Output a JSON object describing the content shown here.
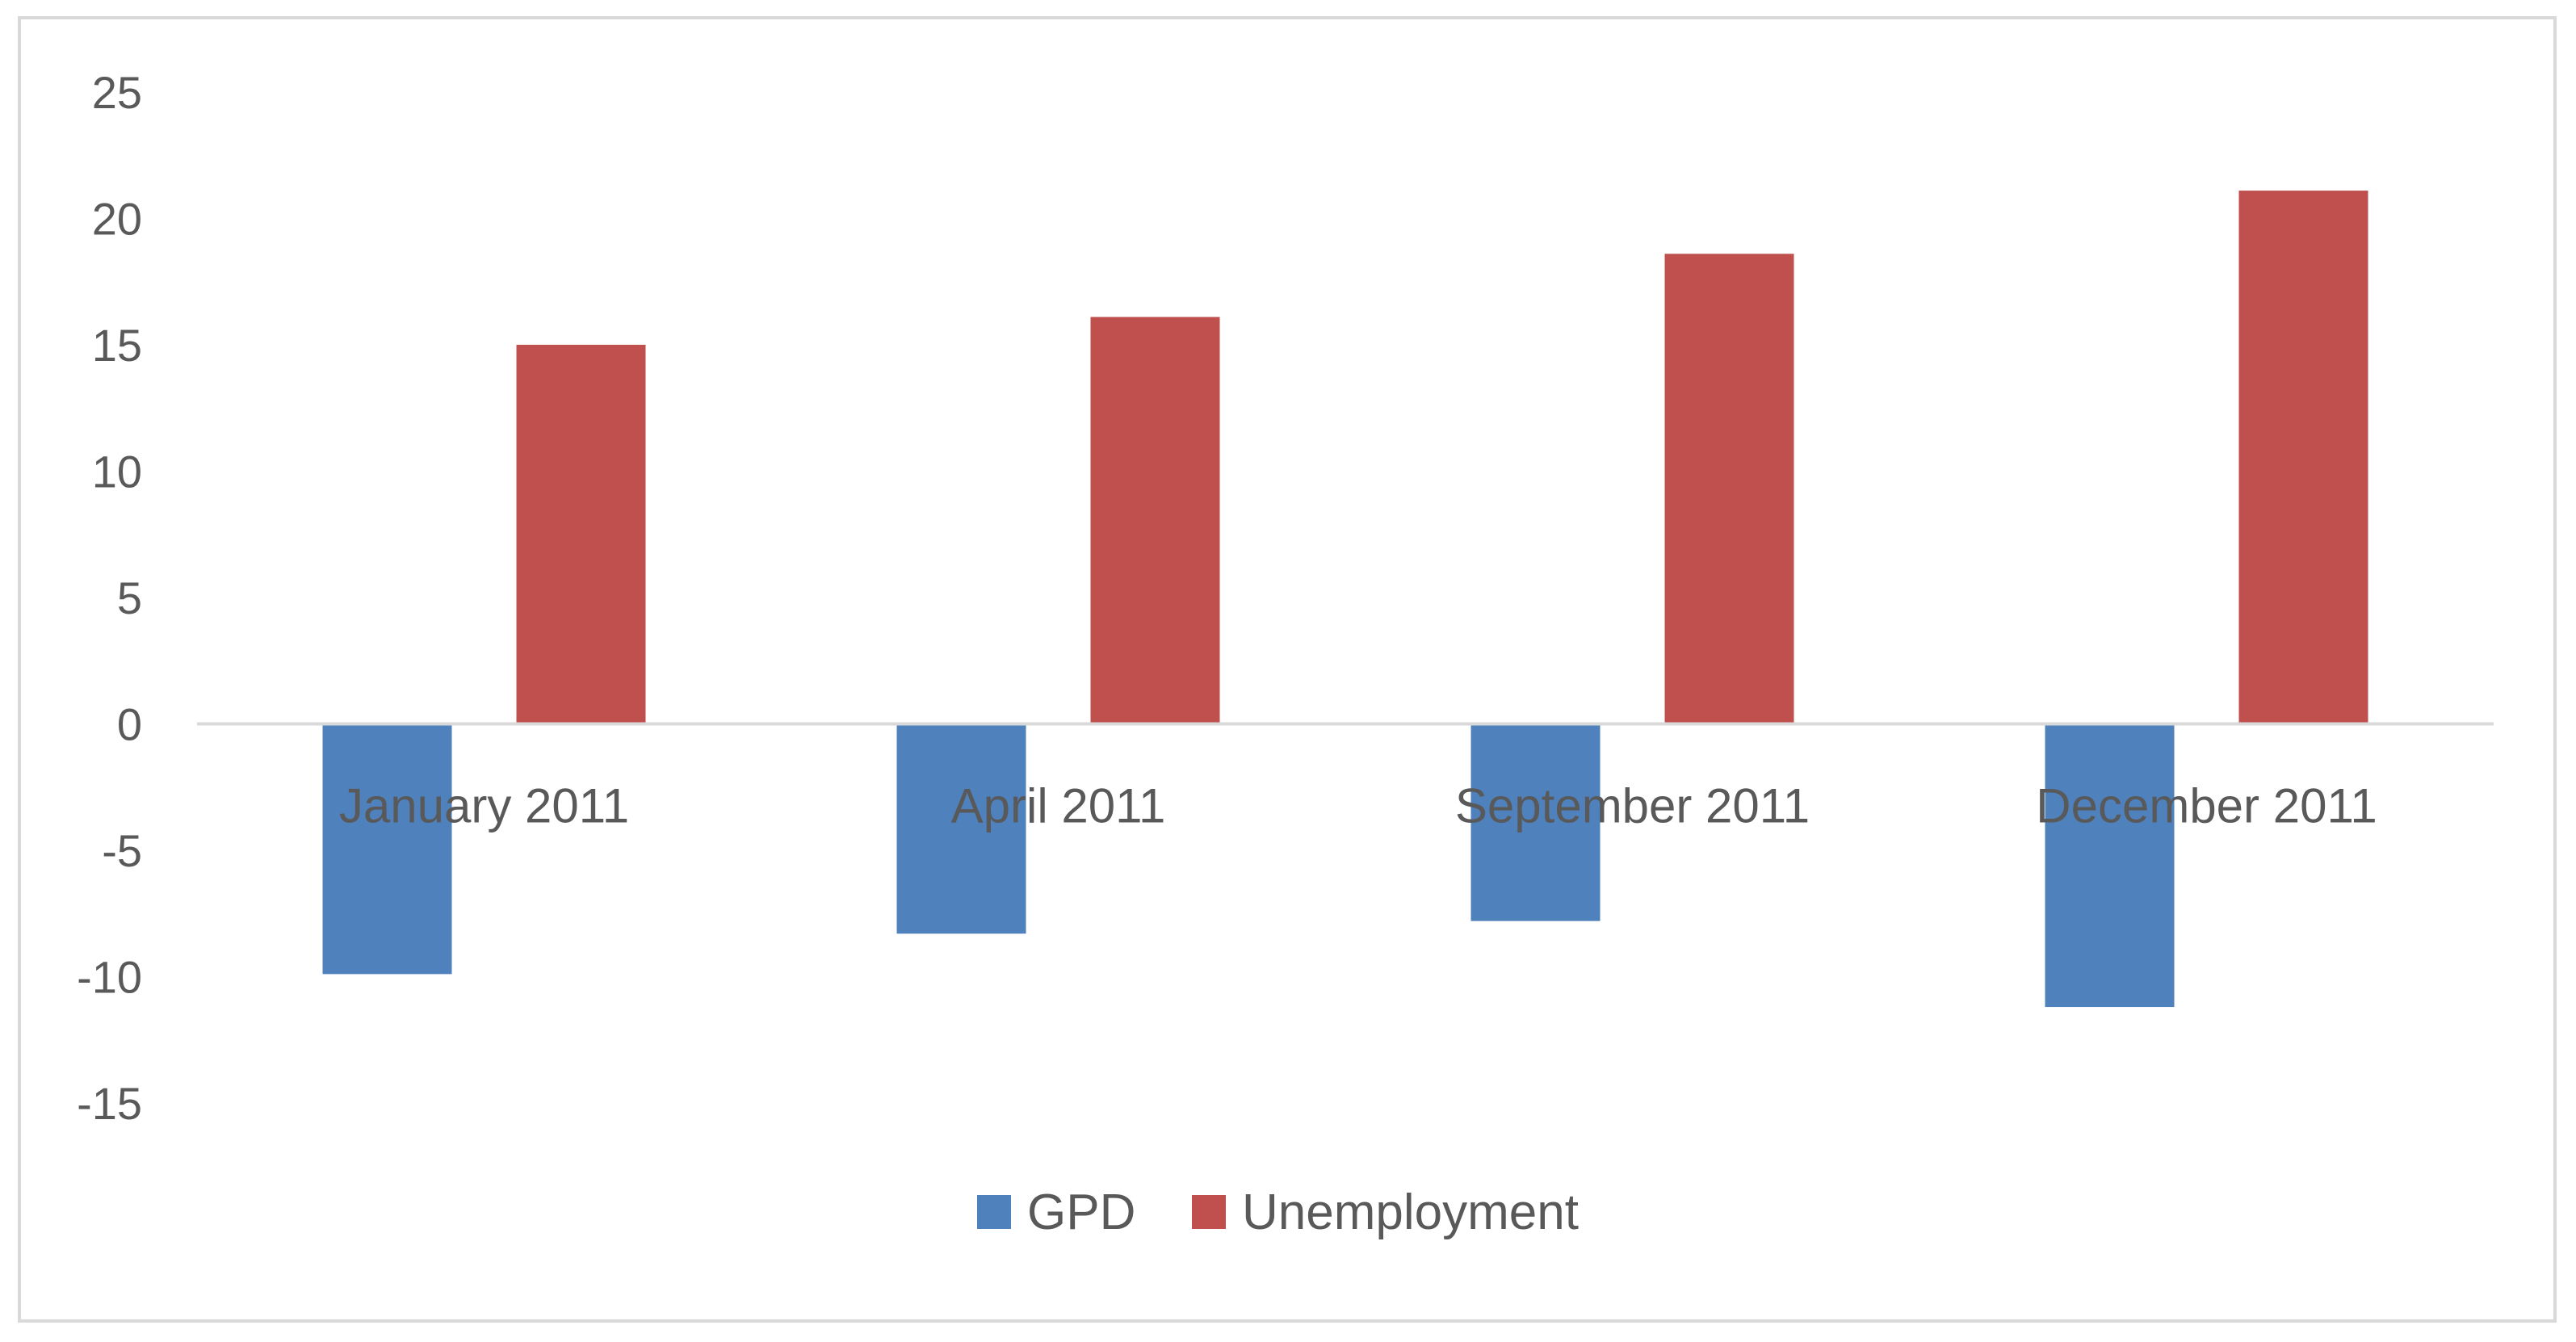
{
  "colors": {
    "gpd": "#4f81bd",
    "unemployment": "#c0504d",
    "axis": "#d9d9d9",
    "text": "#595959"
  },
  "chart_data": {
    "type": "bar",
    "categories": [
      "January 2011",
      "April 2011",
      "September 2011",
      "December 2011"
    ],
    "series": [
      {
        "name": "GPD",
        "values": [
          -9.9,
          -8.3,
          -7.8,
          -11.2
        ]
      },
      {
        "name": "Unemployment",
        "values": [
          15.0,
          16.1,
          18.6,
          21.1
        ]
      }
    ],
    "y_ticks": [
      "25",
      "20",
      "15",
      "10",
      "5",
      "0",
      "-5",
      "-10",
      "-15"
    ],
    "ylim": [
      -15,
      25
    ],
    "title": "",
    "xlabel": "",
    "ylabel": "",
    "grid": false,
    "legend_position": "bottom"
  }
}
